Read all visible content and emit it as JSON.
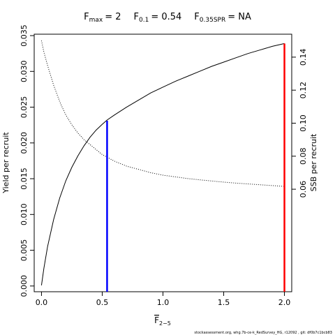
{
  "chart_data": {
    "type": "line",
    "title": {
      "fmax_sym": "F",
      "fmax_sub": "max",
      "fmax_val": "= 2",
      "f01_sym": "F",
      "f01_sub": "0.1",
      "f01_val": "= 0.54",
      "fspr_sym": "F",
      "fspr_sub": "0.35SPR",
      "fspr_val": "= NA"
    },
    "xlabel": {
      "sym": "F",
      "sub": "2−5"
    },
    "ylabel_left": "Yield per recruit",
    "ylabel_right": "SSB per recruit",
    "xlim": [
      -0.06,
      2.06
    ],
    "ylim_left": [
      -0.0008,
      0.0352
    ],
    "ylim_right": [
      -0.0021,
      0.1539
    ],
    "x_ticks": [
      {
        "v": 0.0,
        "label": "0.0"
      },
      {
        "v": 0.5,
        "label": "0.5"
      },
      {
        "v": 1.0,
        "label": "1.0"
      },
      {
        "v": 1.5,
        "label": "1.5"
      },
      {
        "v": 2.0,
        "label": "2.0"
      }
    ],
    "y_left_ticks": [
      {
        "v": 0.0,
        "label": "0.000"
      },
      {
        "v": 0.005,
        "label": "0.005"
      },
      {
        "v": 0.01,
        "label": "0.010"
      },
      {
        "v": 0.015,
        "label": "0.015"
      },
      {
        "v": 0.02,
        "label": "0.020"
      },
      {
        "v": 0.025,
        "label": "0.025"
      },
      {
        "v": 0.03,
        "label": "0.030"
      },
      {
        "v": 0.035,
        "label": "0.035"
      }
    ],
    "y_right_ticks": [
      {
        "v": 0.06,
        "label": "0.06"
      },
      {
        "v": 0.08,
        "label": "0.08"
      },
      {
        "v": 0.1,
        "label": "0.10"
      },
      {
        "v": 0.12,
        "label": "0.12"
      },
      {
        "v": 0.14,
        "label": "0.14"
      }
    ],
    "series": [
      {
        "name": "Yield per recruit",
        "axis": "left",
        "style": "solid",
        "color": "#000000",
        "x": [
          0.0,
          0.02,
          0.05,
          0.1,
          0.15,
          0.2,
          0.25,
          0.3,
          0.35,
          0.4,
          0.45,
          0.5,
          0.54,
          0.6,
          0.7,
          0.8,
          0.9,
          1.0,
          1.1,
          1.2,
          1.3,
          1.4,
          1.5,
          1.6,
          1.7,
          1.8,
          1.9,
          2.0
        ],
        "y": [
          0.0001,
          0.0025,
          0.0055,
          0.0093,
          0.0123,
          0.0147,
          0.0166,
          0.0182,
          0.0196,
          0.0208,
          0.0218,
          0.0226,
          0.0232,
          0.0239,
          0.025,
          0.026,
          0.027,
          0.0278,
          0.0286,
          0.0293,
          0.03,
          0.0307,
          0.0313,
          0.0319,
          0.0325,
          0.033,
          0.0335,
          0.0339
        ]
      },
      {
        "name": "SSB per recruit",
        "axis": "right",
        "style": "dotted",
        "color": "#000000",
        "x": [
          0.0,
          0.02,
          0.05,
          0.1,
          0.15,
          0.2,
          0.25,
          0.3,
          0.35,
          0.4,
          0.45,
          0.5,
          0.6,
          0.7,
          0.8,
          0.9,
          1.0,
          1.1,
          1.2,
          1.3,
          1.4,
          1.5,
          1.6,
          1.7,
          1.8,
          1.9,
          2.0
        ],
        "y": [
          0.15,
          0.143,
          0.135,
          0.123,
          0.113,
          0.105,
          0.099,
          0.094,
          0.09,
          0.087,
          0.084,
          0.081,
          0.077,
          0.074,
          0.072,
          0.07,
          0.0685,
          0.0675,
          0.0665,
          0.0657,
          0.065,
          0.0643,
          0.0637,
          0.0632,
          0.0627,
          0.0622,
          0.0617
        ]
      }
    ],
    "reference_lines": [
      {
        "name": "F0.1",
        "x": 0.54,
        "y_top": 0.0231,
        "color": "#0000ff"
      },
      {
        "name": "Fmax",
        "x": 2.0,
        "y_top": 0.0339,
        "color": "#ff0000"
      }
    ],
    "footer": "stockassessment.org, whg.7b-ce-k_RedSurvey_HG, r12092 , git: df0b7c1bcb83"
  }
}
